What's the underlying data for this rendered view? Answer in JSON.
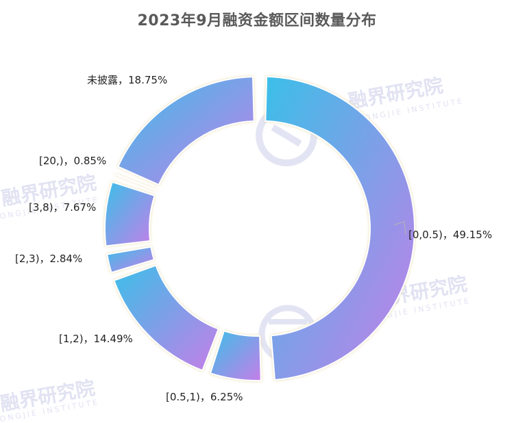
{
  "chart_data": {
    "type": "pie",
    "title": "2023年9月融资金额区间数量分布",
    "slices": [
      {
        "name": "[0,0.5)",
        "value": 49.15,
        "label": "[0,0.5)，49.15%"
      },
      {
        "name": "[0.5,1)",
        "value": 6.25,
        "label": "[0.5,1)，6.25%"
      },
      {
        "name": "[1,2)",
        "value": 14.49,
        "label": "[1,2)，14.49%"
      },
      {
        "name": "[2,3)",
        "value": 2.84,
        "label": "[2,3)，2.84%"
      },
      {
        "name": "[3,8)",
        "value": 7.67,
        "label": "[3,8)，7.67%"
      },
      {
        "name": "[20,)",
        "value": 0.85,
        "label": "[20,)，0.85%"
      },
      {
        "name": "未披露",
        "value": 18.75,
        "label": "未披露，18.75%"
      }
    ],
    "colors": {
      "gradient_start": "#3bbfe8",
      "gradient_end": "#c57ee8"
    }
  },
  "watermark": {
    "text": "融界研究院",
    "subtext": "RONGJIE INSTITUTE"
  }
}
